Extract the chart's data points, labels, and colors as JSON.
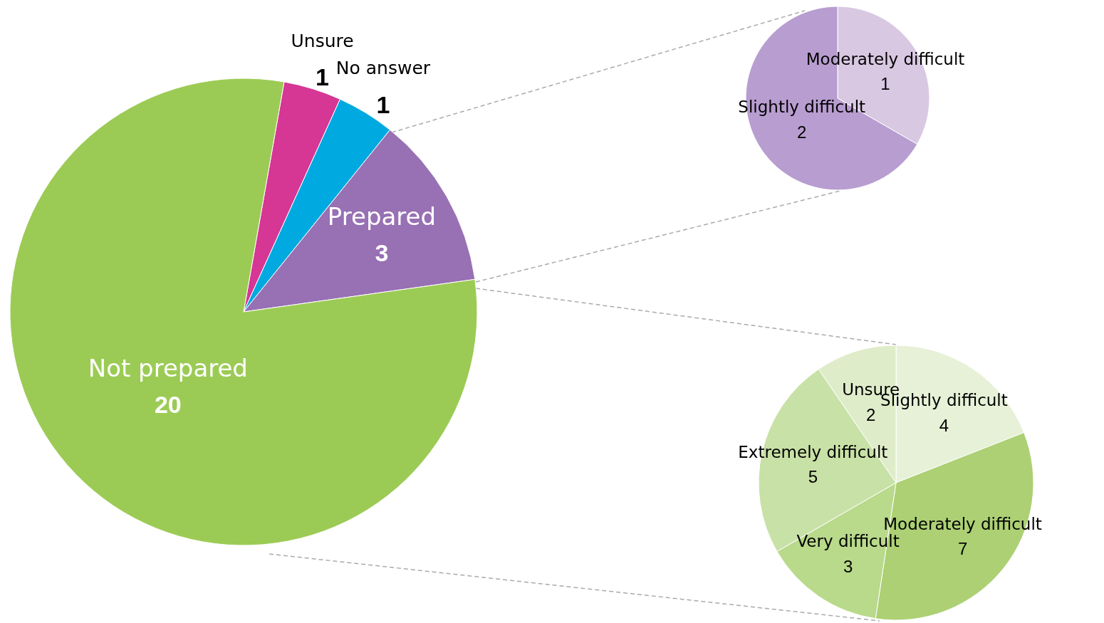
{
  "chart_data": [
    {
      "type": "pie",
      "categories": [
        "Unsure",
        "No answer",
        "Prepared",
        "Not prepared"
      ],
      "values": [
        1,
        1,
        3,
        20
      ],
      "colors": [
        "#d63694",
        "#00a9e0",
        "#9870b4",
        "#9ccb55"
      ],
      "data_labels": true
    },
    {
      "type": "pie",
      "categories": [
        "Moderately difficult",
        "Slightly difficult"
      ],
      "values": [
        1,
        2
      ],
      "colors": [
        "#d9c8e2",
        "#b89dd0"
      ],
      "data_labels": true
    },
    {
      "type": "pie",
      "categories": [
        "Slightly difficult",
        "Moderately difficult",
        "Very difficult",
        "Extremely difficult",
        "Unsure"
      ],
      "values": [
        4,
        7,
        3,
        5,
        2
      ],
      "colors": [
        "#e7f1d8",
        "#acd073",
        "#b9d98b",
        "#c8e1a6",
        "#dfecca"
      ],
      "data_labels": true
    }
  ]
}
